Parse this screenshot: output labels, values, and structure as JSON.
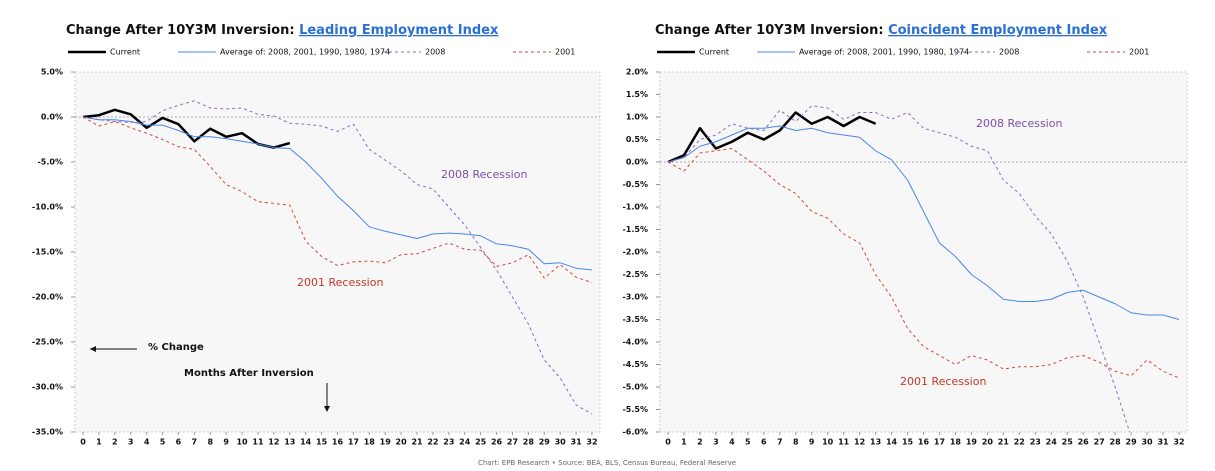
{
  "chart_data": [
    {
      "type": "line",
      "title": "Change After 10Y3M Inversion: ",
      "title_link": "Leading Employment Index",
      "annotations": [
        "2008 Recession",
        "2001 Recession",
        "% Change",
        "Months After Inversion"
      ],
      "x": [
        0,
        1,
        2,
        3,
        4,
        5,
        6,
        7,
        8,
        9,
        10,
        11,
        12,
        13,
        14,
        15,
        16,
        17,
        18,
        19,
        20,
        21,
        22,
        23,
        24,
        25,
        26,
        27,
        28,
        29,
        30,
        31,
        32
      ],
      "xlim": [
        0,
        32
      ],
      "xticks": [
        0,
        1,
        2,
        3,
        4,
        5,
        6,
        7,
        8,
        9,
        10,
        11,
        12,
        13,
        14,
        15,
        16,
        17,
        18,
        19,
        20,
        21,
        22,
        23,
        24,
        25,
        26,
        27,
        28,
        29,
        30,
        31,
        32
      ],
      "ylim": [
        -35,
        5
      ],
      "yticks": [
        {
          "value": 5,
          "label": "5.0%"
        },
        {
          "value": 0,
          "label": "0.0%"
        },
        {
          "value": -5,
          "label": "-5.0%"
        },
        {
          "value": -10,
          "label": "-10.0%"
        },
        {
          "value": -15,
          "label": "-15.0%"
        },
        {
          "value": -20,
          "label": "-20.0%"
        },
        {
          "value": -25,
          "label": "-25.0%"
        },
        {
          "value": -30,
          "label": "-30.0%"
        },
        {
          "value": -35,
          "label": "-35.0%"
        }
      ],
      "series": [
        {
          "name": "Current",
          "color": "#000000",
          "dashed": false,
          "width": 2.5,
          "values": [
            0,
            0.2,
            0.8,
            0.3,
            -1.2,
            -0.1,
            -0.8,
            -2.7,
            -1.3,
            -2.2,
            -1.8,
            -3.0,
            -3.4,
            -2.9,
            null,
            null,
            null,
            null,
            null,
            null,
            null,
            null,
            null,
            null,
            null,
            null,
            null,
            null,
            null,
            null,
            null,
            null,
            null
          ]
        },
        {
          "name": "Average of: 2008, 2001, 1990, 1980, 1974",
          "color": "#4a86e8",
          "dashed": false,
          "width": 1,
          "values": [
            0,
            -0.3,
            -0.3,
            -0.5,
            -0.9,
            -0.9,
            -1.5,
            -2.2,
            -2.2,
            -2.4,
            -2.7,
            -3.0,
            -3.4,
            -3.5,
            -5,
            -6.8,
            -8.8,
            -10.4,
            -12.2,
            -12.7,
            -13.1,
            -13.5,
            -13,
            -12.9,
            -13,
            -13.2,
            -14.1,
            -14.3,
            -14.7,
            -16.3,
            -16.2,
            -16.8,
            -17
          ]
        },
        {
          "name": "2008",
          "color": "#8e6bbf",
          "dashed": true,
          "width": 1,
          "values": [
            0,
            -0.3,
            -0.5,
            -0.6,
            -0.5,
            0.7,
            1.3,
            1.8,
            1,
            0.9,
            1,
            0.3,
            0.1,
            -0.7,
            -0.8,
            -1,
            -1.6,
            -0.8,
            -3.6,
            -4.8,
            -6,
            -7.5,
            -8,
            -10,
            -12,
            -14.5,
            -17,
            -20,
            -23,
            -27,
            -29,
            -32,
            -33
          ]
        },
        {
          "name": "2001",
          "color": "#d04a3a",
          "dashed": true,
          "width": 1,
          "values": [
            0,
            -1,
            -0.5,
            -1.2,
            -1.8,
            -2.5,
            -3.3,
            -3.6,
            -5.5,
            -7.5,
            -8.3,
            -9.4,
            -9.6,
            -9.8,
            -13.8,
            -15.5,
            -16.5,
            -16.1,
            -16,
            -16.2,
            -15.3,
            -15.2,
            -14.6,
            -14,
            -14.7,
            -14.8,
            -16.6,
            -16.2,
            -15.3,
            -17.9,
            -16.4,
            -17.8,
            -18.4
          ]
        }
      ]
    },
    {
      "type": "line",
      "title": "Change After 10Y3M Inversion: ",
      "title_link": "Coincident Employment Index",
      "annotations": [
        "2008 Recession",
        "2001 Recession"
      ],
      "x": [
        0,
        1,
        2,
        3,
        4,
        5,
        6,
        7,
        8,
        9,
        10,
        11,
        12,
        13,
        14,
        15,
        16,
        17,
        18,
        19,
        20,
        21,
        22,
        23,
        24,
        25,
        26,
        27,
        28,
        29,
        30,
        31,
        32
      ],
      "xlim": [
        0,
        32
      ],
      "xticks": [
        0,
        1,
        2,
        3,
        4,
        5,
        6,
        7,
        8,
        9,
        10,
        11,
        12,
        13,
        14,
        15,
        16,
        17,
        18,
        19,
        20,
        21,
        22,
        23,
        24,
        25,
        26,
        27,
        28,
        29,
        30,
        31,
        32
      ],
      "ylim": [
        -6,
        2
      ],
      "yticks": [
        {
          "value": 2,
          "label": "2.0%"
        },
        {
          "value": 1.5,
          "label": "1.5%"
        },
        {
          "value": 1,
          "label": "1.0%"
        },
        {
          "value": 0.5,
          "label": "0.5%"
        },
        {
          "value": 0,
          "label": "0.0%"
        },
        {
          "value": -0.5,
          "label": "-0.5%"
        },
        {
          "value": -1,
          "label": "-1.0%"
        },
        {
          "value": -1.5,
          "label": "-1.5%"
        },
        {
          "value": -2,
          "label": "-2.0%"
        },
        {
          "value": -2.5,
          "label": "-2.5%"
        },
        {
          "value": -3,
          "label": "-3.0%"
        },
        {
          "value": -3.5,
          "label": "-3.5%"
        },
        {
          "value": -4,
          "label": "-4.0%"
        },
        {
          "value": -4.5,
          "label": "-4.5%"
        },
        {
          "value": -5,
          "label": "-5.0%"
        },
        {
          "value": -5.5,
          "label": "-5.5%"
        },
        {
          "value": -6,
          "label": "-6.0%"
        }
      ],
      "series": [
        {
          "name": "Current",
          "color": "#000000",
          "dashed": false,
          "width": 2.5,
          "values": [
            0,
            0.15,
            0.75,
            0.3,
            0.45,
            0.65,
            0.5,
            0.7,
            1.1,
            0.85,
            1.0,
            0.8,
            1.0,
            0.85,
            null,
            null,
            null,
            null,
            null,
            null,
            null,
            null,
            null,
            null,
            null,
            null,
            null,
            null,
            null,
            null,
            null,
            null,
            null
          ]
        },
        {
          "name": "Average of: 2008, 2001, 1990, 1980, 1974",
          "color": "#4a86e8",
          "dashed": false,
          "width": 1,
          "values": [
            0,
            0.1,
            0.35,
            0.45,
            0.6,
            0.75,
            0.75,
            0.8,
            0.7,
            0.75,
            0.65,
            0.6,
            0.55,
            0.25,
            0.05,
            -0.4,
            -1.1,
            -1.8,
            -2.1,
            -2.5,
            -2.75,
            -3.05,
            -3.1,
            -3.1,
            -3.05,
            -2.9,
            -2.85,
            -3.0,
            -3.15,
            -3.35,
            -3.4,
            -3.4,
            -3.5
          ]
        },
        {
          "name": "2008",
          "color": "#8e6bbf",
          "dashed": true,
          "width": 1,
          "values": [
            0,
            0.1,
            0.5,
            0.6,
            0.85,
            0.75,
            0.7,
            1.15,
            0.9,
            1.25,
            1.2,
            0.95,
            1.1,
            1.1,
            0.95,
            1.1,
            0.75,
            0.65,
            0.55,
            0.35,
            0.25,
            -0.4,
            -0.7,
            -1.2,
            -1.6,
            -2.2,
            -3.0,
            -4.0,
            -5.0,
            -6.1,
            null,
            null,
            null
          ]
        },
        {
          "name": "2001",
          "color": "#d04a3a",
          "dashed": true,
          "width": 1,
          "values": [
            0,
            -0.2,
            0.2,
            0.25,
            0.3,
            0.05,
            -0.2,
            -0.5,
            -0.7,
            -1.1,
            -1.25,
            -1.6,
            -1.8,
            -2.5,
            -3,
            -3.7,
            -4.1,
            -4.3,
            -4.5,
            -4.3,
            -4.4,
            -4.6,
            -4.55,
            -4.55,
            -4.5,
            -4.35,
            -4.3,
            -4.45,
            -4.65,
            -4.75,
            -4.4,
            -4.65,
            -4.8
          ]
        }
      ]
    }
  ],
  "footer": "Chart: EPB Research  •  Source: BEA, BLS, Census Bureau, Federal Reserve"
}
